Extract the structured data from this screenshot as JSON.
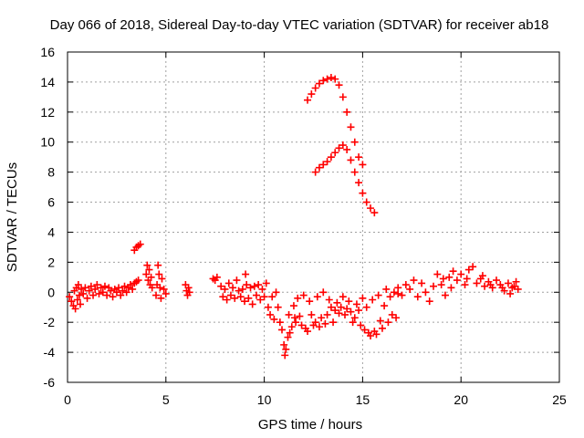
{
  "chart_data": {
    "type": "scatter",
    "title": "Day 066 of 2018, Sidereal Day-to-day VTEC variation (SDTVAR) for receiver ab18",
    "xlabel": "GPS time / hours",
    "ylabel": "SDTVAR / TECUs",
    "xlim": [
      0,
      25
    ],
    "ylim": [
      -6,
      16
    ],
    "xticks": [
      0,
      5,
      10,
      15,
      20,
      25
    ],
    "yticks": [
      -6,
      -4,
      -2,
      0,
      2,
      4,
      6,
      8,
      10,
      12,
      14,
      16
    ],
    "xtick_labels": [
      "0",
      "5",
      "10",
      "15",
      "20",
      "25"
    ],
    "ytick_labels": [
      "-6",
      "-4",
      "-2",
      "0",
      "2",
      "4",
      "6",
      "8",
      "10",
      "12",
      "14",
      "16"
    ],
    "grid": true,
    "marker": "+",
    "color": "#ff0000",
    "series": [
      {
        "name": "SDTVAR",
        "points": [
          [
            0.1,
            -0.3
          ],
          [
            0.2,
            -0.6
          ],
          [
            0.3,
            -0.9
          ],
          [
            0.35,
            0.1
          ],
          [
            0.4,
            -1.1
          ],
          [
            0.45,
            0.3
          ],
          [
            0.5,
            -0.5
          ],
          [
            0.55,
            0.5
          ],
          [
            0.6,
            -0.2
          ],
          [
            0.65,
            -0.8
          ],
          [
            0.7,
            0.2
          ],
          [
            0.8,
            -0.1
          ],
          [
            0.9,
            0.3
          ],
          [
            1.0,
            -0.4
          ],
          [
            1.1,
            0.1
          ],
          [
            1.2,
            0.4
          ],
          [
            1.3,
            -0.2
          ],
          [
            1.4,
            0.2
          ],
          [
            1.5,
            0.5
          ],
          [
            1.6,
            -0.1
          ],
          [
            1.7,
            0.3
          ],
          [
            1.8,
            0.0
          ],
          [
            1.9,
            0.4
          ],
          [
            2.0,
            -0.2
          ],
          [
            2.1,
            0.3
          ],
          [
            2.2,
            0.1
          ],
          [
            2.3,
            -0.3
          ],
          [
            2.4,
            0.2
          ],
          [
            2.5,
            0.0
          ],
          [
            2.6,
            0.3
          ],
          [
            2.7,
            -0.2
          ],
          [
            2.8,
            0.1
          ],
          [
            2.9,
            0.4
          ],
          [
            3.0,
            0.0
          ],
          [
            3.1,
            0.3
          ],
          [
            3.2,
            0.5
          ],
          [
            3.3,
            0.2
          ],
          [
            3.4,
            0.6
          ],
          [
            3.5,
            0.7
          ],
          [
            3.6,
            0.8
          ],
          [
            3.4,
            2.8
          ],
          [
            3.5,
            3.0
          ],
          [
            3.6,
            3.1
          ],
          [
            3.7,
            3.2
          ],
          [
            4.0,
            1.2
          ],
          [
            4.05,
            1.8
          ],
          [
            4.1,
            0.8
          ],
          [
            4.15,
            1.5
          ],
          [
            4.2,
            0.5
          ],
          [
            4.25,
            1.0
          ],
          [
            4.3,
            0.3
          ],
          [
            4.5,
            -0.2
          ],
          [
            4.55,
            0.5
          ],
          [
            4.6,
            1.8
          ],
          [
            4.65,
            1.2
          ],
          [
            4.7,
            0.3
          ],
          [
            4.75,
            -0.4
          ],
          [
            4.8,
            0.9
          ],
          [
            4.9,
            0.2
          ],
          [
            5.0,
            -0.1
          ],
          [
            6.0,
            0.5
          ],
          [
            6.05,
            0.1
          ],
          [
            6.1,
            -0.2
          ],
          [
            6.15,
            0.3
          ],
          [
            6.2,
            0.0
          ],
          [
            7.4,
            0.9
          ],
          [
            7.5,
            0.8
          ],
          [
            7.6,
            1.0
          ],
          [
            7.8,
            0.4
          ],
          [
            7.9,
            -0.3
          ],
          [
            8.0,
            0.2
          ],
          [
            8.1,
            -0.5
          ],
          [
            8.2,
            0.6
          ],
          [
            8.3,
            -0.2
          ],
          [
            8.4,
            0.3
          ],
          [
            8.5,
            -0.4
          ],
          [
            8.6,
            0.8
          ],
          [
            8.7,
            0.1
          ],
          [
            8.8,
            -0.3
          ],
          [
            8.9,
            0.2
          ],
          [
            9.0,
            -0.6
          ],
          [
            9.05,
            1.2
          ],
          [
            9.1,
            0.5
          ],
          [
            9.2,
            -0.4
          ],
          [
            9.3,
            0.3
          ],
          [
            9.4,
            -0.8
          ],
          [
            9.5,
            0.4
          ],
          [
            9.6,
            -0.2
          ],
          [
            9.7,
            0.5
          ],
          [
            9.8,
            -0.5
          ],
          [
            9.9,
            0.2
          ],
          [
            10.0,
            -0.3
          ],
          [
            10.1,
            0.6
          ],
          [
            10.2,
            -1.0
          ],
          [
            10.3,
            -1.5
          ],
          [
            10.4,
            -0.3
          ],
          [
            10.5,
            -1.8
          ],
          [
            10.6,
            0.0
          ],
          [
            10.7,
            -1.0
          ],
          [
            10.8,
            -2.0
          ],
          [
            10.9,
            -2.5
          ],
          [
            11.0,
            -3.5
          ],
          [
            11.05,
            -4.2
          ],
          [
            11.1,
            -3.8
          ],
          [
            11.2,
            -3.0
          ],
          [
            11.25,
            -1.5
          ],
          [
            11.3,
            -2.7
          ],
          [
            11.4,
            -2.3
          ],
          [
            11.5,
            -0.9
          ],
          [
            11.55,
            -1.7
          ],
          [
            11.6,
            -2.0
          ],
          [
            11.7,
            -0.4
          ],
          [
            11.8,
            -1.6
          ],
          [
            11.9,
            -2.2
          ],
          [
            12.0,
            -0.2
          ],
          [
            12.1,
            -2.4
          ],
          [
            12.2,
            -2.6
          ],
          [
            12.3,
            -0.6
          ],
          [
            12.4,
            -1.5
          ],
          [
            12.5,
            -2.2
          ],
          [
            12.6,
            -2.0
          ],
          [
            12.7,
            -0.3
          ],
          [
            12.8,
            -2.3
          ],
          [
            12.9,
            -1.7
          ],
          [
            13.0,
            0.0
          ],
          [
            13.1,
            -2.1
          ],
          [
            13.2,
            -1.5
          ],
          [
            13.3,
            -0.5
          ],
          [
            13.4,
            -1.0
          ],
          [
            13.5,
            -2.0
          ],
          [
            13.6,
            -1.2
          ],
          [
            13.7,
            -0.7
          ],
          [
            13.8,
            -1.4
          ],
          [
            13.9,
            -1.0
          ],
          [
            14.0,
            -0.3
          ],
          [
            14.1,
            -1.5
          ],
          [
            14.2,
            -1.1
          ],
          [
            14.3,
            -0.6
          ],
          [
            14.4,
            -1.3
          ],
          [
            14.5,
            -2.0
          ],
          [
            14.6,
            -1.7
          ],
          [
            14.7,
            -0.8
          ],
          [
            14.8,
            -1.2
          ],
          [
            14.9,
            -2.2
          ],
          [
            15.0,
            -0.4
          ],
          [
            15.1,
            -2.5
          ],
          [
            15.2,
            -1.0
          ],
          [
            15.3,
            -2.7
          ],
          [
            15.4,
            -2.9
          ],
          [
            15.5,
            -0.5
          ],
          [
            15.6,
            -2.6
          ],
          [
            15.7,
            -2.8
          ],
          [
            15.8,
            -0.2
          ],
          [
            15.9,
            -1.9
          ],
          [
            16.0,
            -2.4
          ],
          [
            16.1,
            -0.9
          ],
          [
            16.2,
            0.2
          ],
          [
            16.3,
            -2.0
          ],
          [
            16.4,
            -0.3
          ],
          [
            16.5,
            -1.5
          ],
          [
            16.6,
            0.0
          ],
          [
            16.7,
            -1.7
          ],
          [
            16.8,
            -0.1
          ],
          [
            12.2,
            12.8
          ],
          [
            12.4,
            13.2
          ],
          [
            12.6,
            13.6
          ],
          [
            12.8,
            13.9
          ],
          [
            13.0,
            14.1
          ],
          [
            13.2,
            14.2
          ],
          [
            13.4,
            14.3
          ],
          [
            13.6,
            14.2
          ],
          [
            13.8,
            13.8
          ],
          [
            14.0,
            13.0
          ],
          [
            14.2,
            12.0
          ],
          [
            14.4,
            11.0
          ],
          [
            14.6,
            10.0
          ],
          [
            14.8,
            9.0
          ],
          [
            15.0,
            8.5
          ],
          [
            12.6,
            8.0
          ],
          [
            12.8,
            8.3
          ],
          [
            13.0,
            8.5
          ],
          [
            13.2,
            8.7
          ],
          [
            13.4,
            9.0
          ],
          [
            13.6,
            9.3
          ],
          [
            13.8,
            9.6
          ],
          [
            14.0,
            9.8
          ],
          [
            14.2,
            9.5
          ],
          [
            14.4,
            8.8
          ],
          [
            14.6,
            8.0
          ],
          [
            14.8,
            7.3
          ],
          [
            15.0,
            6.6
          ],
          [
            15.2,
            6.0
          ],
          [
            15.4,
            5.6
          ],
          [
            15.6,
            5.3
          ],
          [
            16.8,
            0.3
          ],
          [
            17.0,
            -0.2
          ],
          [
            17.2,
            0.5
          ],
          [
            17.4,
            0.2
          ],
          [
            17.6,
            0.8
          ],
          [
            17.8,
            -0.3
          ],
          [
            18.0,
            0.6
          ],
          [
            18.2,
            0.0
          ],
          [
            18.4,
            -0.6
          ],
          [
            18.6,
            0.4
          ],
          [
            18.8,
            1.2
          ],
          [
            19.0,
            0.5
          ],
          [
            19.2,
            -0.2
          ],
          [
            19.4,
            1.0
          ],
          [
            19.6,
            1.4
          ],
          [
            19.8,
            0.8
          ],
          [
            20.0,
            1.2
          ],
          [
            20.2,
            0.5
          ],
          [
            20.4,
            1.5
          ],
          [
            20.6,
            1.7
          ],
          [
            20.8,
            0.6
          ],
          [
            21.0,
            0.9
          ],
          [
            21.2,
            0.4
          ],
          [
            21.4,
            0.7
          ],
          [
            21.6,
            0.3
          ],
          [
            21.8,
            0.8
          ],
          [
            22.0,
            0.5
          ],
          [
            22.2,
            0.1
          ],
          [
            22.4,
            0.6
          ],
          [
            22.6,
            0.3
          ],
          [
            22.8,
            0.7
          ],
          [
            22.9,
            0.2
          ],
          [
            19.1,
            0.9
          ],
          [
            19.5,
            0.3
          ],
          [
            20.3,
            0.9
          ],
          [
            21.1,
            1.1
          ],
          [
            21.5,
            0.5
          ],
          [
            22.1,
            0.3
          ],
          [
            22.5,
            -0.1
          ],
          [
            22.7,
            0.4
          ]
        ]
      }
    ]
  }
}
